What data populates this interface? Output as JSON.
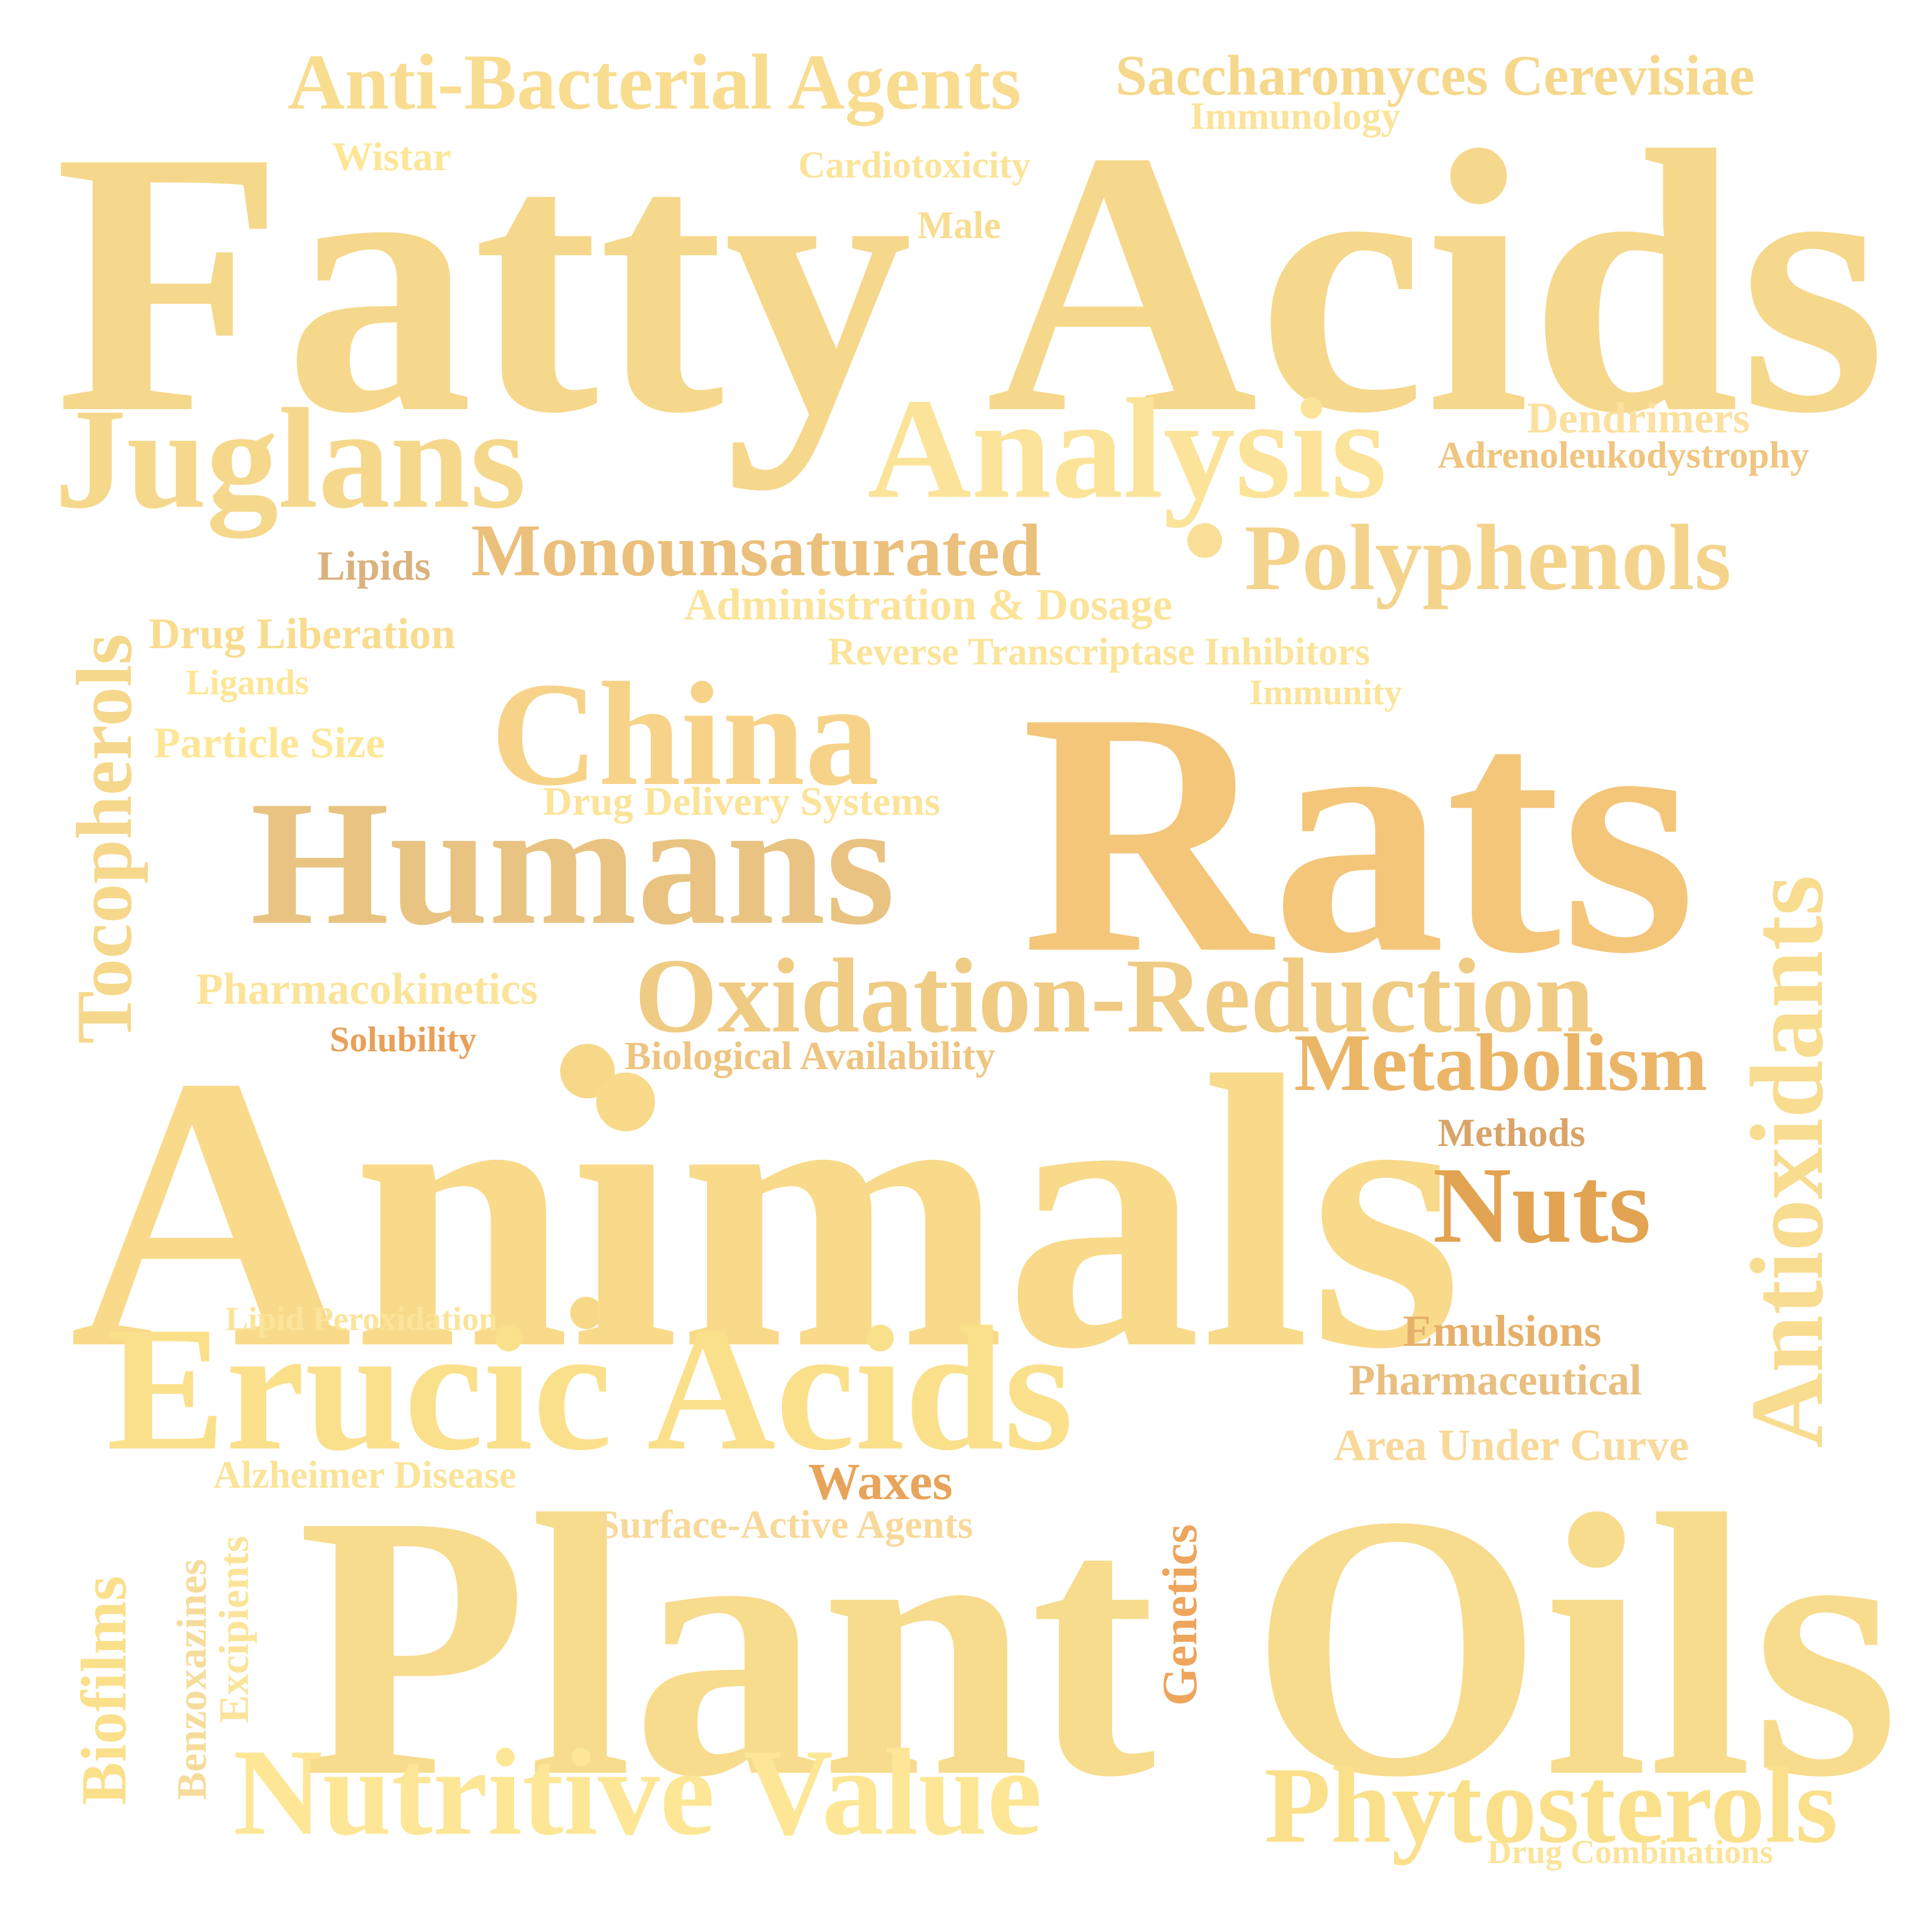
{
  "words": {
    "fatty_acids": "Fatty Acids",
    "rats": "Rats",
    "animals": "Animals",
    "plant_oils": "Plant Oils",
    "humans": "Humans",
    "erucic_acids": "Erucic Acids",
    "analysis": "Analysis",
    "juglans": "Juglans",
    "china": "China",
    "oxidation_reduction": "Oxidation-Reduction",
    "nutritive_value": "Nutritive Value",
    "phytosterols": "Phytosterols",
    "polyphenols": "Polyphenols",
    "metabolism": "Metabolism",
    "nuts": "Nuts",
    "monounsaturated": "Monounsaturated",
    "anti_bacterial_agents": "Anti-Bacterial Agents",
    "saccharomyces_cerevisiae": "Saccharomyces Cerevisiae",
    "immunology": "Immunology",
    "wistar": "Wistar",
    "cardiotoxicity": "Cardiotoxicity",
    "male": "Male",
    "dendrimers": "Dendrimers",
    "adrenoleukodystrophy": "Adrenoleukodystrophy",
    "lipids": "Lipids",
    "administration_dosage": "Administration & Dosage",
    "drug_liberation": "Drug Liberation",
    "reverse_transcriptase_inhibitors": "Reverse Transcriptase Inhibitors",
    "ligands": "Ligands",
    "immunity": "Immunity",
    "particle_size": "Particle Size",
    "drug_delivery_systems": "Drug Delivery Systems",
    "pharmacokinetics": "Pharmacokinetics",
    "solubility": "Solubility",
    "biological_availability": "Biological Availability",
    "methods": "Methods",
    "lipid_peroxidation": "Lipid Peroxidation",
    "emulsions": "Emulsions",
    "pharmaceutical": "Pharmaceutical",
    "area_under_curve": "Area Under Curve",
    "alzheimer_disease": "Alzheimer Disease",
    "waxes": "Waxes",
    "surface_active_agents": "Surface-Active Agents",
    "drug_combinations": "Drug Combinations",
    "tocopherols": "Tocopherols",
    "antioxidants": "Antioxidants",
    "biofilms": "Biofilms",
    "benzoxazines": "Benzoxazines",
    "excipients": "Excipients",
    "genetics": "Genetics"
  },
  "palette": {
    "background": "#ffffff",
    "light_gold": "#fbe49a",
    "gold": "#f6d88c",
    "amber": "#f4c67a",
    "tan": "#e9c382",
    "orange": "#e2a352"
  }
}
